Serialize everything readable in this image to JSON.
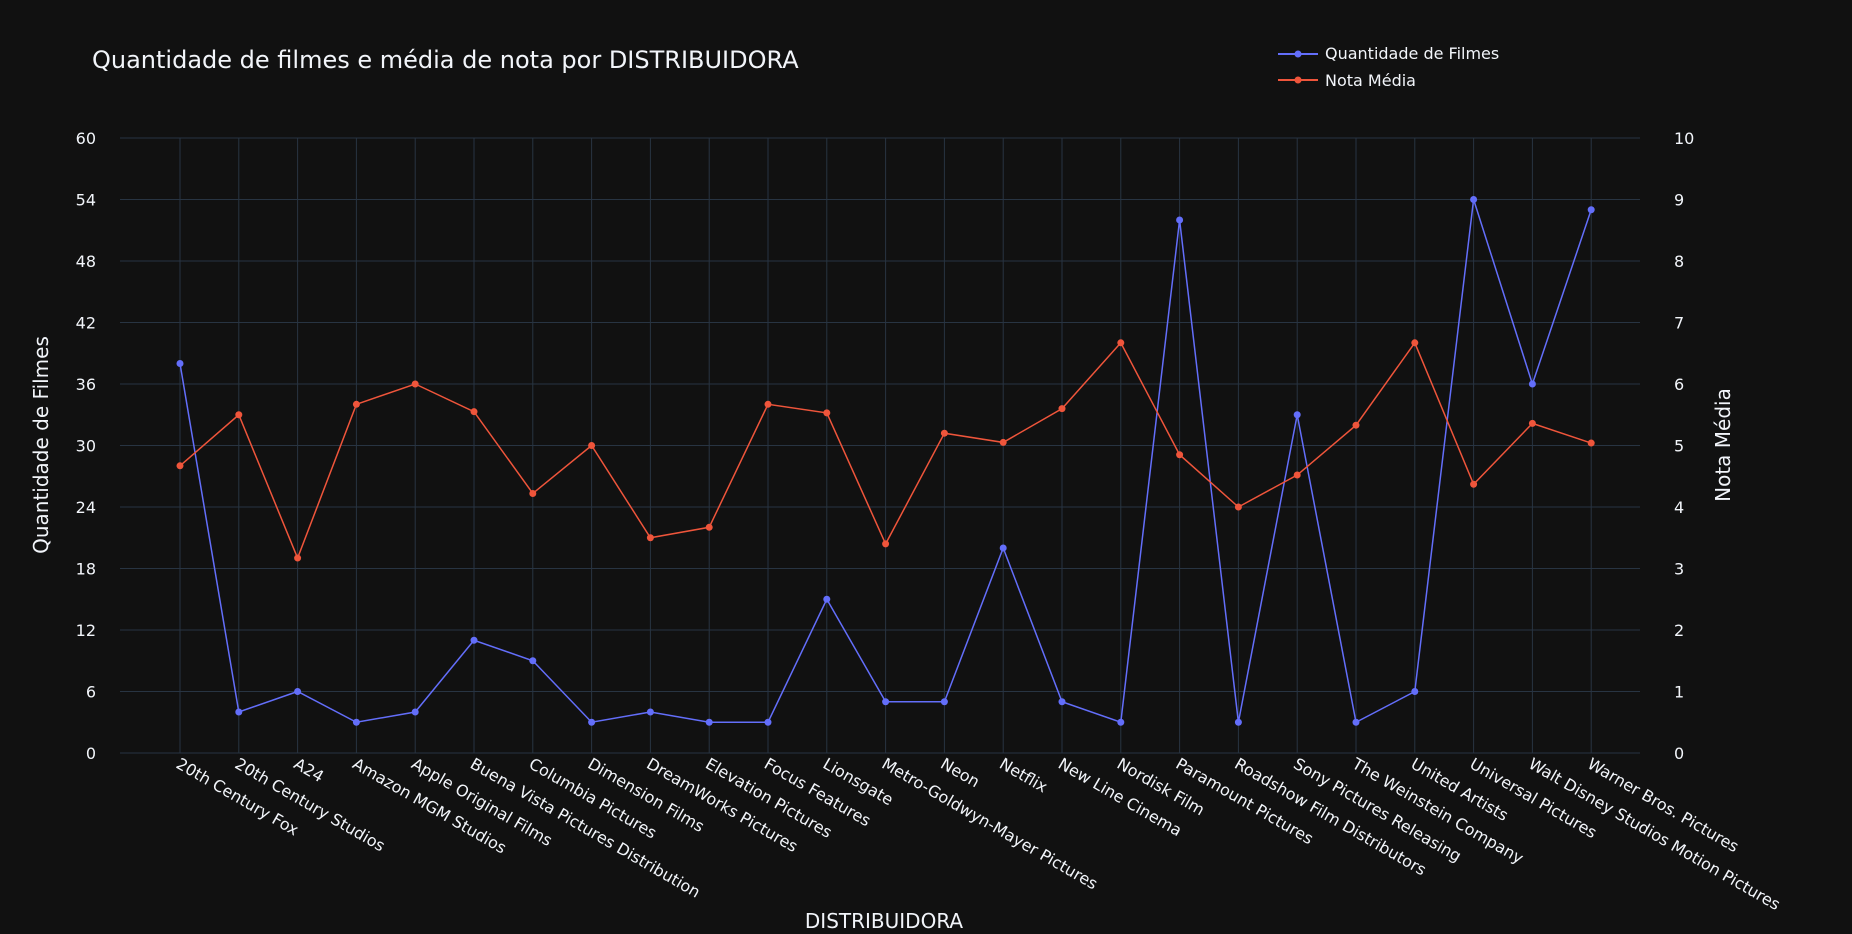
{
  "chart_data": {
    "type": "line",
    "title": "Quantidade de filmes e média de nota por DISTRIBUIDORA",
    "xlabel": "DISTRIBUIDORA",
    "ylabel": "Quantidade de Filmes",
    "y2label": "Nota Média",
    "ylim": [
      0,
      60
    ],
    "y2lim": [
      0,
      10
    ],
    "yticks": [
      "0",
      "6",
      "12",
      "18",
      "24",
      "30",
      "36",
      "42",
      "48",
      "54",
      "60"
    ],
    "y2ticks": [
      "0",
      "1",
      "2",
      "3",
      "4",
      "5",
      "6",
      "7",
      "8",
      "9",
      "10"
    ],
    "grid": true,
    "legend_position": "top-right",
    "categories": [
      "20th Century Fox",
      "20th Century Studios",
      "A24",
      "Amazon MGM Studios",
      "Apple Original Films",
      "Buena Vista Pictures Distribution",
      "Columbia Pictures",
      "Dimension Films",
      "DreamWorks Pictures",
      "Elevation Pictures",
      "Focus Features",
      "Lionsgate",
      "Metro-Goldwyn-Mayer Pictures",
      "Neon",
      "Netflix",
      "New Line Cinema",
      "Nordisk Film",
      "Paramount Pictures",
      "Roadshow Film Distributors",
      "Sony Pictures Releasing",
      "The Weinstein Company",
      "United Artists",
      "Universal Pictures",
      "Walt Disney Studios Motion Pictures",
      "Warner Bros. Pictures"
    ],
    "series": [
      {
        "name": "Quantidade de Filmes",
        "axis": "y",
        "color": "#636efa",
        "values": [
          38,
          4,
          6,
          3,
          4,
          11,
          9,
          3,
          4,
          3,
          3,
          15,
          5,
          5,
          20,
          5,
          3,
          52,
          3,
          33,
          3,
          6,
          54,
          36,
          53
        ]
      },
      {
        "name": "Nota Média",
        "axis": "y2",
        "color": "#ef553b",
        "values": [
          4.67,
          5.5,
          3.17,
          5.67,
          6.0,
          5.55,
          4.22,
          5.0,
          3.5,
          3.67,
          5.67,
          5.53,
          3.4,
          5.2,
          5.05,
          5.6,
          6.67,
          4.85,
          4.0,
          4.52,
          5.33,
          6.67,
          4.37,
          5.36,
          5.04
        ]
      }
    ]
  }
}
